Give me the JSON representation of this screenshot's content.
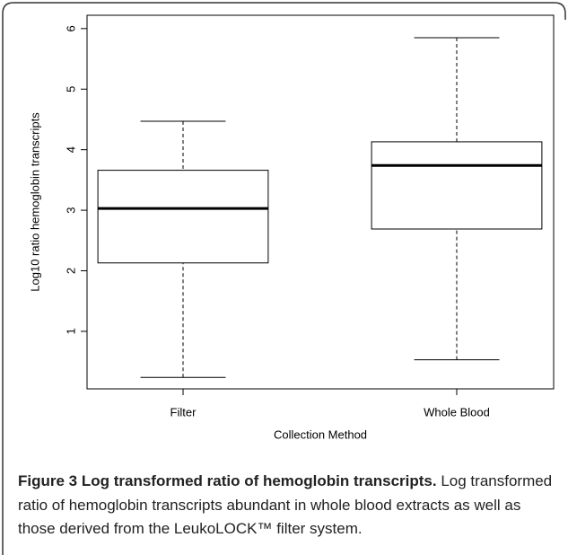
{
  "chart_data": {
    "type": "box",
    "categories": [
      "Filter",
      "Whole Blood"
    ],
    "boxes": [
      {
        "min": 0.24,
        "q1": 2.13,
        "median": 3.03,
        "q3": 3.66,
        "max": 4.47
      },
      {
        "min": 0.53,
        "q1": 2.69,
        "median": 3.74,
        "q3": 4.13,
        "max": 5.85
      }
    ],
    "color": "#000000",
    "x_label": "Collection Method",
    "y_label": "Log10 ratio hemoglobin transcripts",
    "ylim": [
      0.05,
      6.22
    ],
    "yticks": [
      1,
      2,
      3,
      4,
      5,
      6
    ],
    "caption_label": "Figure 3 Log transformed ratio of hemoglobin transcripts.",
    "caption_text": "Log transformed ratio of hemoglobin transcripts abundant in whole blood extracts as well as those derived from the LeukoLOCK™ filter system."
  }
}
